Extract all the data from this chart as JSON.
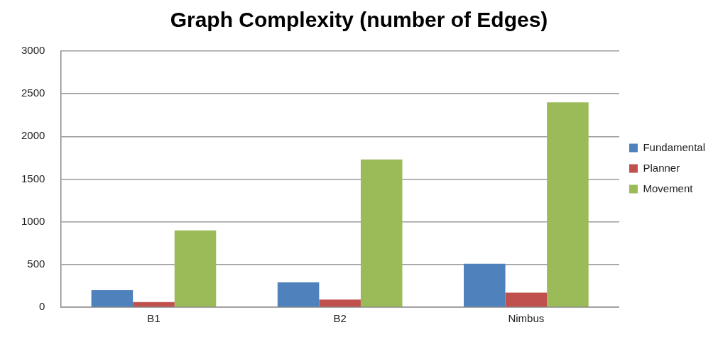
{
  "chart_data": {
    "type": "bar",
    "title": "Graph Complexity (number of Edges)",
    "categories": [
      "B1",
      "B2",
      "Nimbus"
    ],
    "series": [
      {
        "name": "Fundamental",
        "color": "#4f81bd",
        "values": [
          200,
          290,
          510
        ]
      },
      {
        "name": "Planner",
        "color": "#c0504d",
        "values": [
          60,
          90,
          170
        ]
      },
      {
        "name": "Movement",
        "color": "#9bbb59",
        "values": [
          900,
          1730,
          2400
        ]
      }
    ],
    "ylim": [
      0,
      3000
    ],
    "yticks": [
      0,
      500,
      1000,
      1500,
      2000,
      2500,
      3000
    ],
    "grid": "y",
    "legend": "right"
  }
}
